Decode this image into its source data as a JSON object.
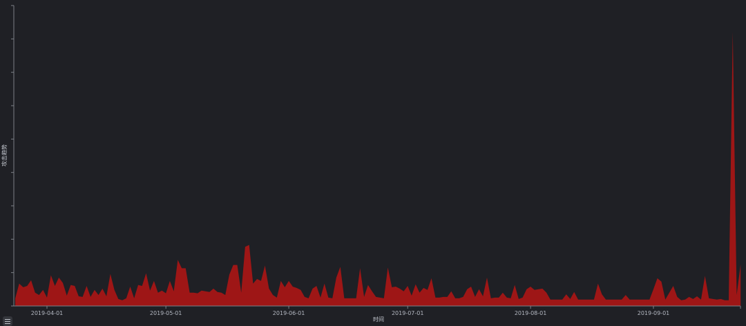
{
  "chart_data": {
    "type": "area",
    "title": "",
    "xlabel": "时间",
    "ylabel": "攻击趋势",
    "ylim": [
      0,
      9
    ],
    "y_tick_labels_shown": false,
    "grid": false,
    "x_ticks": [
      "2019-04-01",
      "2019-05-01",
      "2019-06-01",
      "2019-07-01",
      "2019-08-01",
      "2019-09-01"
    ],
    "x_range": [
      "2019-03-24",
      "2019-09-23"
    ],
    "fill_color": "#9e1616",
    "background_color": "#1f2025",
    "series": [
      {
        "daily_values_by_month": [
          {
            "month": "2019-03",
            "first_day": 24,
            "values": [
              0.23,
              0.67,
              0.56,
              0.6,
              0.77,
              0.4,
              0.33,
              0.48
            ]
          },
          {
            "month": "2019-04",
            "first_day": 1,
            "values": [
              0.25,
              0.92,
              0.6,
              0.85,
              0.69,
              0.31,
              0.63,
              0.6,
              0.29,
              0.27,
              0.6,
              0.27,
              0.48,
              0.33,
              0.52,
              0.29,
              0.96,
              0.48,
              0.21,
              0.17,
              0.23,
              0.58,
              0.23,
              0.63,
              0.6,
              0.98,
              0.46,
              0.75,
              0.4,
              0.46
            ]
          },
          {
            "month": "2019-05",
            "first_day": 1,
            "values": [
              0.38,
              0.75,
              0.44,
              1.38,
              1.13,
              1.13,
              0.4,
              0.4,
              0.38,
              0.46,
              0.44,
              0.42,
              0.52,
              0.42,
              0.4,
              0.33,
              0.94,
              1.23,
              1.23,
              0.4,
              1.77,
              1.83,
              0.67,
              0.81,
              0.75,
              1.21,
              0.52,
              0.33,
              0.25,
              0.75,
              0.56
            ]
          },
          {
            "month": "2019-06",
            "first_day": 1,
            "values": [
              0.75,
              0.58,
              0.54,
              0.48,
              0.27,
              0.23,
              0.52,
              0.6,
              0.25,
              0.67,
              0.25,
              0.23,
              0.85,
              1.17,
              0.23,
              0.23,
              0.23,
              0.23,
              1.13,
              0.27,
              0.63,
              0.44,
              0.27,
              0.25,
              0.23,
              1.15,
              0.56,
              0.58,
              0.52,
              0.44
            ]
          },
          {
            "month": "2019-07",
            "first_day": 1,
            "values": [
              0.6,
              0.31,
              0.65,
              0.4,
              0.54,
              0.48,
              0.83,
              0.25,
              0.25,
              0.27,
              0.27,
              0.44,
              0.23,
              0.23,
              0.27,
              0.5,
              0.58,
              0.27,
              0.5,
              0.29,
              0.85,
              0.23,
              0.25,
              0.25,
              0.4,
              0.25,
              0.23,
              0.63,
              0.21,
              0.25,
              0.5
            ]
          },
          {
            "month": "2019-08",
            "first_day": 1,
            "values": [
              0.58,
              0.48,
              0.5,
              0.52,
              0.4,
              0.19,
              0.19,
              0.19,
              0.19,
              0.35,
              0.21,
              0.42,
              0.19,
              0.19,
              0.19,
              0.19,
              0.19,
              0.67,
              0.35,
              0.19,
              0.19,
              0.19,
              0.19,
              0.19,
              0.33,
              0.19,
              0.19,
              0.19,
              0.19,
              0.19,
              0.19
            ]
          },
          {
            "month": "2019-09",
            "first_day": 1,
            "values": [
              0.5,
              0.83,
              0.73,
              0.19,
              0.4,
              0.6,
              0.27,
              0.17,
              0.19,
              0.27,
              0.21,
              0.29,
              0.19,
              0.9,
              0.23,
              0.21,
              0.19,
              0.21,
              0.17,
              0.17,
              8.21,
              0.33,
              1.25
            ]
          }
        ]
      }
    ]
  },
  "legend_toggle": {
    "icon": "list-icon"
  }
}
